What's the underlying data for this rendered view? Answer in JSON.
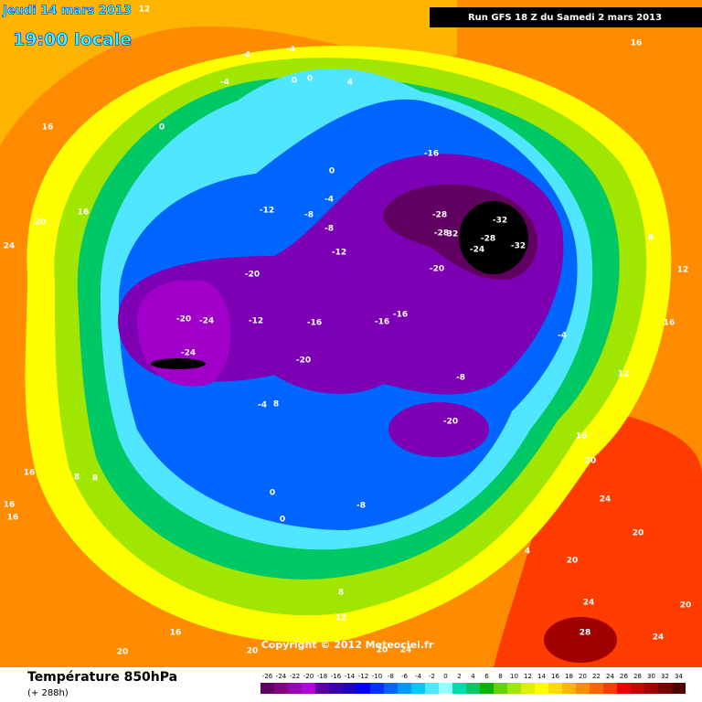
{
  "header": {
    "date": "Jeudi 14 mars 2013",
    "time": "19:00 locale",
    "run": "Run GFS 18 Z du Samedi 2 mars 2013"
  },
  "footer": {
    "title": "Température 850hPa",
    "lead": "(+ 288h)",
    "copyright": "Copyright © 2012 Meteociel.fr"
  },
  "colorbar": {
    "ticks": [
      -26,
      -24,
      -22,
      -20,
      -18,
      -16,
      -14,
      -12,
      -10,
      -8,
      -6,
      -4,
      -2,
      0,
      2,
      4,
      6,
      8,
      10,
      12,
      14,
      16,
      18,
      20,
      22,
      24,
      26,
      28,
      30,
      32,
      34
    ],
    "colors": [
      "#600060",
      "#800080",
      "#9a00b4",
      "#b400dc",
      "#5a00a0",
      "#3c00b4",
      "#1e00c8",
      "#0000ff",
      "#0032ff",
      "#0064ff",
      "#0096ff",
      "#00c8ff",
      "#50e6ff",
      "#96ffff",
      "#00dcaa",
      "#00c864",
      "#00b400",
      "#64d200",
      "#a0e600",
      "#dcf000",
      "#ffff00",
      "#ffdc00",
      "#ffb400",
      "#ff8c00",
      "#ff6400",
      "#ff3c00",
      "#f00000",
      "#c80000",
      "#a00000",
      "#780000",
      "#500000"
    ]
  },
  "map": {
    "labels": [
      12,
      16,
      -4,
      -4,
      -4,
      0,
      0,
      4,
      0,
      16,
      0,
      -16,
      -4,
      -12,
      -8,
      -8,
      -28,
      -32,
      -28,
      32,
      -28,
      -24,
      -32,
      -12,
      -20,
      -20,
      20,
      16,
      24,
      8,
      12,
      16,
      -20,
      -24,
      -12,
      -16,
      -16,
      -16,
      -4,
      -24,
      -20,
      -8,
      12,
      -4,
      8,
      -20,
      16,
      20,
      16,
      8,
      8,
      16,
      16,
      0,
      0,
      -8,
      24,
      20,
      4,
      20,
      8,
      24,
      20,
      12,
      16,
      28,
      24,
      20,
      20,
      20,
      24
    ]
  }
}
